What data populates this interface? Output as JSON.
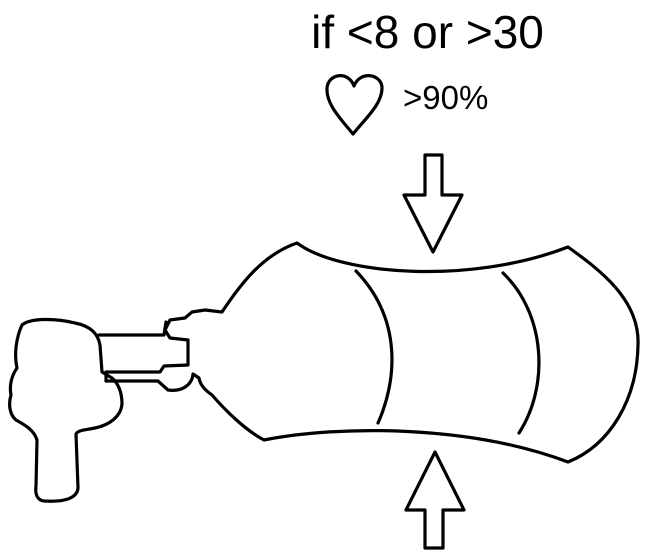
{
  "labels": {
    "condition": "if <8 or >30",
    "saturation": ">90%"
  },
  "icons": {
    "heart": "heart-outline-icon",
    "arrow_down": "arrow-down-icon",
    "arrow_up": "arrow-up-icon"
  },
  "colors": {
    "stroke": "#000000",
    "background": "#ffffff"
  }
}
